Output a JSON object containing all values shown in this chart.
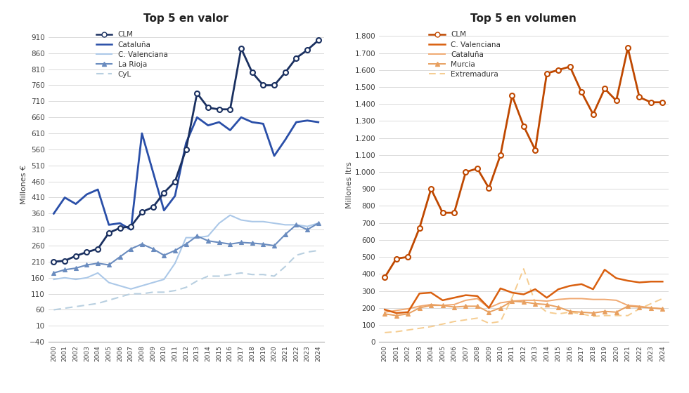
{
  "years": [
    2000,
    2001,
    2002,
    2003,
    2004,
    2005,
    2006,
    2007,
    2008,
    2009,
    2010,
    2011,
    2012,
    2013,
    2014,
    2015,
    2016,
    2017,
    2018,
    2019,
    2020,
    2021,
    2022,
    2023,
    2024
  ],
  "valor": {
    "CLM": [
      210,
      213,
      228,
      240,
      250,
      300,
      315,
      320,
      365,
      380,
      425,
      460,
      560,
      735,
      690,
      685,
      685,
      875,
      800,
      760,
      760,
      800,
      845,
      870,
      900
    ],
    "Cataluna": [
      360,
      410,
      390,
      420,
      435,
      325,
      330,
      310,
      610,
      490,
      370,
      415,
      580,
      660,
      635,
      645,
      620,
      660,
      645,
      640,
      540,
      590,
      645,
      650,
      645
    ],
    "C_Valenciana": [
      155,
      160,
      155,
      160,
      175,
      145,
      135,
      125,
      135,
      145,
      155,
      205,
      285,
      285,
      290,
      330,
      355,
      340,
      335,
      335,
      330,
      325,
      325,
      320,
      330
    ],
    "La_Rioja": [
      175,
      185,
      190,
      200,
      205,
      200,
      225,
      250,
      265,
      250,
      230,
      245,
      265,
      290,
      275,
      270,
      265,
      270,
      268,
      265,
      260,
      295,
      325,
      310,
      330
    ],
    "CyL": [
      60,
      65,
      70,
      75,
      80,
      90,
      100,
      110,
      110,
      115,
      115,
      120,
      130,
      150,
      165,
      165,
      170,
      175,
      170,
      170,
      165,
      195,
      230,
      240,
      245
    ]
  },
  "volumen": {
    "CLM": [
      380,
      490,
      500,
      670,
      900,
      760,
      760,
      1000,
      1020,
      905,
      1100,
      1450,
      1270,
      1130,
      1580,
      1600,
      1620,
      1470,
      1340,
      1490,
      1420,
      1730,
      1440,
      1410,
      1410
    ],
    "C_Valenciana": [
      190,
      170,
      175,
      285,
      290,
      245,
      260,
      275,
      270,
      200,
      315,
      290,
      280,
      310,
      260,
      310,
      330,
      340,
      310,
      425,
      375,
      360,
      350,
      355,
      355
    ],
    "Cataluna": [
      175,
      185,
      195,
      210,
      220,
      215,
      220,
      245,
      255,
      200,
      230,
      240,
      245,
      245,
      240,
      250,
      255,
      255,
      250,
      250,
      245,
      215,
      210,
      200,
      195
    ],
    "Murcia": [
      165,
      155,
      165,
      200,
      215,
      215,
      205,
      210,
      210,
      175,
      200,
      240,
      235,
      225,
      220,
      205,
      180,
      175,
      170,
      180,
      175,
      210,
      205,
      200,
      195
    ],
    "Extremadura": [
      55,
      60,
      70,
      80,
      90,
      105,
      120,
      130,
      140,
      110,
      120,
      260,
      430,
      230,
      175,
      165,
      175,
      165,
      150,
      155,
      155,
      155,
      195,
      225,
      255
    ]
  },
  "valor_yticks": [
    -40,
    10,
    60,
    110,
    160,
    210,
    260,
    310,
    360,
    410,
    460,
    510,
    560,
    610,
    660,
    710,
    760,
    810,
    860,
    910
  ],
  "volumen_yticks": [
    0,
    100,
    200,
    300,
    400,
    500,
    600,
    700,
    800,
    900,
    1000,
    1100,
    1200,
    1300,
    1400,
    1500,
    1600,
    1700,
    1800
  ],
  "volumen_yticklabels": [
    "0",
    "100",
    "200",
    "300",
    "400",
    "500",
    "600",
    "700",
    "800",
    "900",
    "1.000",
    "1.100",
    "1.200",
    "1.300",
    "1.400",
    "1.500",
    "1.600",
    "1.700",
    "1.800"
  ],
  "valor_title": "Top 5 en valor",
  "volumen_title": "Top 5 en volumen",
  "ylabel_valor": "Millones €",
  "ylabel_volumen": "Millones ltrs",
  "clm_val_color": "#1a3060",
  "cat_val_color": "#2a4fa8",
  "cv_val_color": "#abc8e8",
  "lr_val_color": "#6a8cbf",
  "cyl_val_color": "#b8cfe0",
  "clm_vol_color": "#bf4800",
  "cv_vol_color": "#d96010",
  "cat_vol_color": "#f0a870",
  "mur_vol_color": "#e8a060",
  "ext_vol_color": "#f5cc90"
}
